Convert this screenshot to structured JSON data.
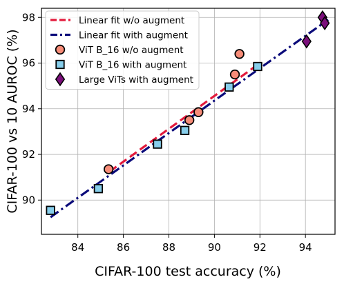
{
  "chart_data": {
    "type": "scatter",
    "title": "",
    "xlabel": "CIFAR-100 test accuracy (%)",
    "ylabel": "CIFAR-100 vs 10 AUROC (%)",
    "xlim": [
      82.4,
      95.3
    ],
    "ylim": [
      88.5,
      98.4
    ],
    "xticks": [
      84,
      86,
      88,
      90,
      92,
      94
    ],
    "yticks": [
      90,
      92,
      94,
      96,
      98
    ],
    "grid": true,
    "legend_position": "top-left",
    "series": [
      {
        "name": "Linear fit w/o augment",
        "kind": "line",
        "style": "dashed",
        "color": "#e31a3c",
        "x": [
          85.4,
          92.0
        ],
        "y": [
          91.25,
          96.0
        ]
      },
      {
        "name": "Linear fit with augment",
        "kind": "line",
        "style": "dashdot",
        "color": "#0b0b7a",
        "x": [
          82.8,
          95.0
        ],
        "y": [
          89.25,
          97.9
        ]
      },
      {
        "name": "ViT B_16 w/o augment",
        "kind": "scatter",
        "marker": "circle",
        "color": "#f78c78",
        "x": [
          85.35,
          88.9,
          89.3,
          90.9,
          91.1
        ],
        "y": [
          91.35,
          93.5,
          93.85,
          95.5,
          96.4
        ]
      },
      {
        "name": "ViT B_16 with augment",
        "kind": "scatter",
        "marker": "square",
        "color": "#87ceeb",
        "x": [
          82.8,
          84.9,
          87.5,
          88.7,
          90.65,
          91.9
        ],
        "y": [
          89.55,
          90.5,
          92.45,
          93.05,
          94.95,
          95.85
        ]
      },
      {
        "name": "Large ViTs with augment",
        "kind": "scatter",
        "marker": "diamond",
        "color": "#7b0f7b",
        "x": [
          94.05,
          94.75,
          94.85
        ],
        "y": [
          96.95,
          98.0,
          97.75
        ]
      }
    ]
  }
}
